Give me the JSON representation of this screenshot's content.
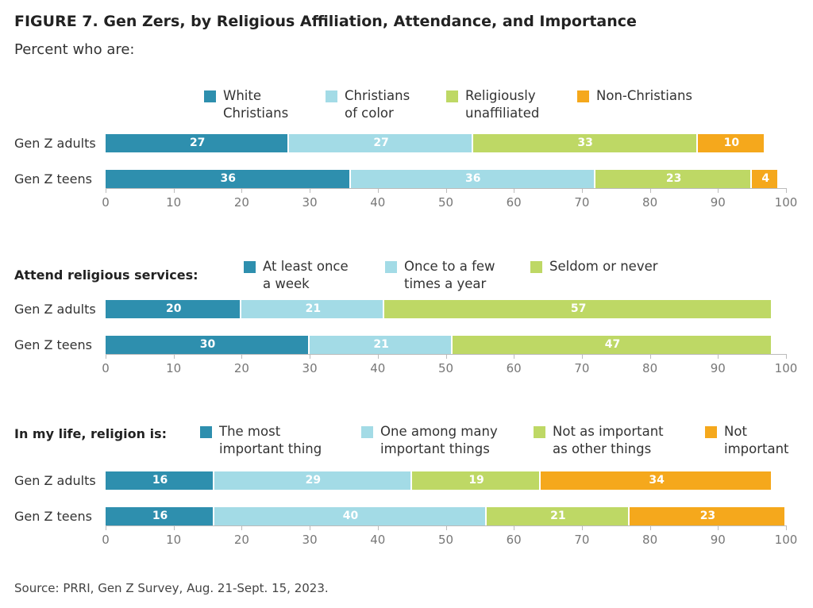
{
  "title": "FIGURE 7.  Gen Zers, by Religious Affiliation, Attendance, and Importance",
  "subtitle": "Percent who are:",
  "source": "Source: PRRI, Gen Z Survey, Aug. 21-Sept. 15, 2023.",
  "chart_data": [
    {
      "type": "bar",
      "orientation": "horizontal",
      "stacked": true,
      "categories": [
        "Gen Z adults",
        "Gen Z teens"
      ],
      "series": [
        {
          "name": "White Christians",
          "color": "#2e8fae",
          "values": [
            27,
            36
          ]
        },
        {
          "name": "Christians of color",
          "color": "#a3dbe6",
          "values": [
            27,
            36
          ]
        },
        {
          "name": "Religiously unaffiliated",
          "color": "#bed865",
          "values": [
            33,
            23
          ]
        },
        {
          "name": "Non-Christians",
          "color": "#f5a81c",
          "values": [
            10,
            4
          ]
        }
      ],
      "xlim": [
        0,
        100
      ],
      "xticks": [
        0,
        10,
        20,
        30,
        40,
        50,
        60,
        70,
        80,
        90,
        100
      ]
    },
    {
      "type": "bar",
      "orientation": "horizontal",
      "stacked": true,
      "label": "Attend religious services:",
      "categories": [
        "Gen Z adults",
        "Gen Z teens"
      ],
      "series": [
        {
          "name": "At least once a week",
          "color": "#2e8fae",
          "values": [
            20,
            30
          ]
        },
        {
          "name": "Once to a few times a year",
          "color": "#a3dbe6",
          "values": [
            21,
            21
          ]
        },
        {
          "name": "Seldom or never",
          "color": "#bed865",
          "values": [
            57,
            47
          ]
        }
      ],
      "xlim": [
        0,
        100
      ],
      "xticks": [
        0,
        10,
        20,
        30,
        40,
        50,
        60,
        70,
        80,
        90,
        100
      ]
    },
    {
      "type": "bar",
      "orientation": "horizontal",
      "stacked": true,
      "label": "In my life, religion is:",
      "categories": [
        "Gen Z adults",
        "Gen Z teens"
      ],
      "series": [
        {
          "name": "The most important thing",
          "color": "#2e8fae",
          "values": [
            16,
            16
          ]
        },
        {
          "name": "One among many important things",
          "color": "#a3dbe6",
          "values": [
            29,
            40
          ]
        },
        {
          "name": "Not as important as other things",
          "color": "#bed865",
          "values": [
            19,
            21
          ]
        },
        {
          "name": "Not important",
          "color": "#f5a81c",
          "values": [
            34,
            23
          ]
        }
      ],
      "xlim": [
        0,
        100
      ],
      "xticks": [
        0,
        10,
        20,
        30,
        40,
        50,
        60,
        70,
        80,
        90,
        100
      ]
    }
  ]
}
